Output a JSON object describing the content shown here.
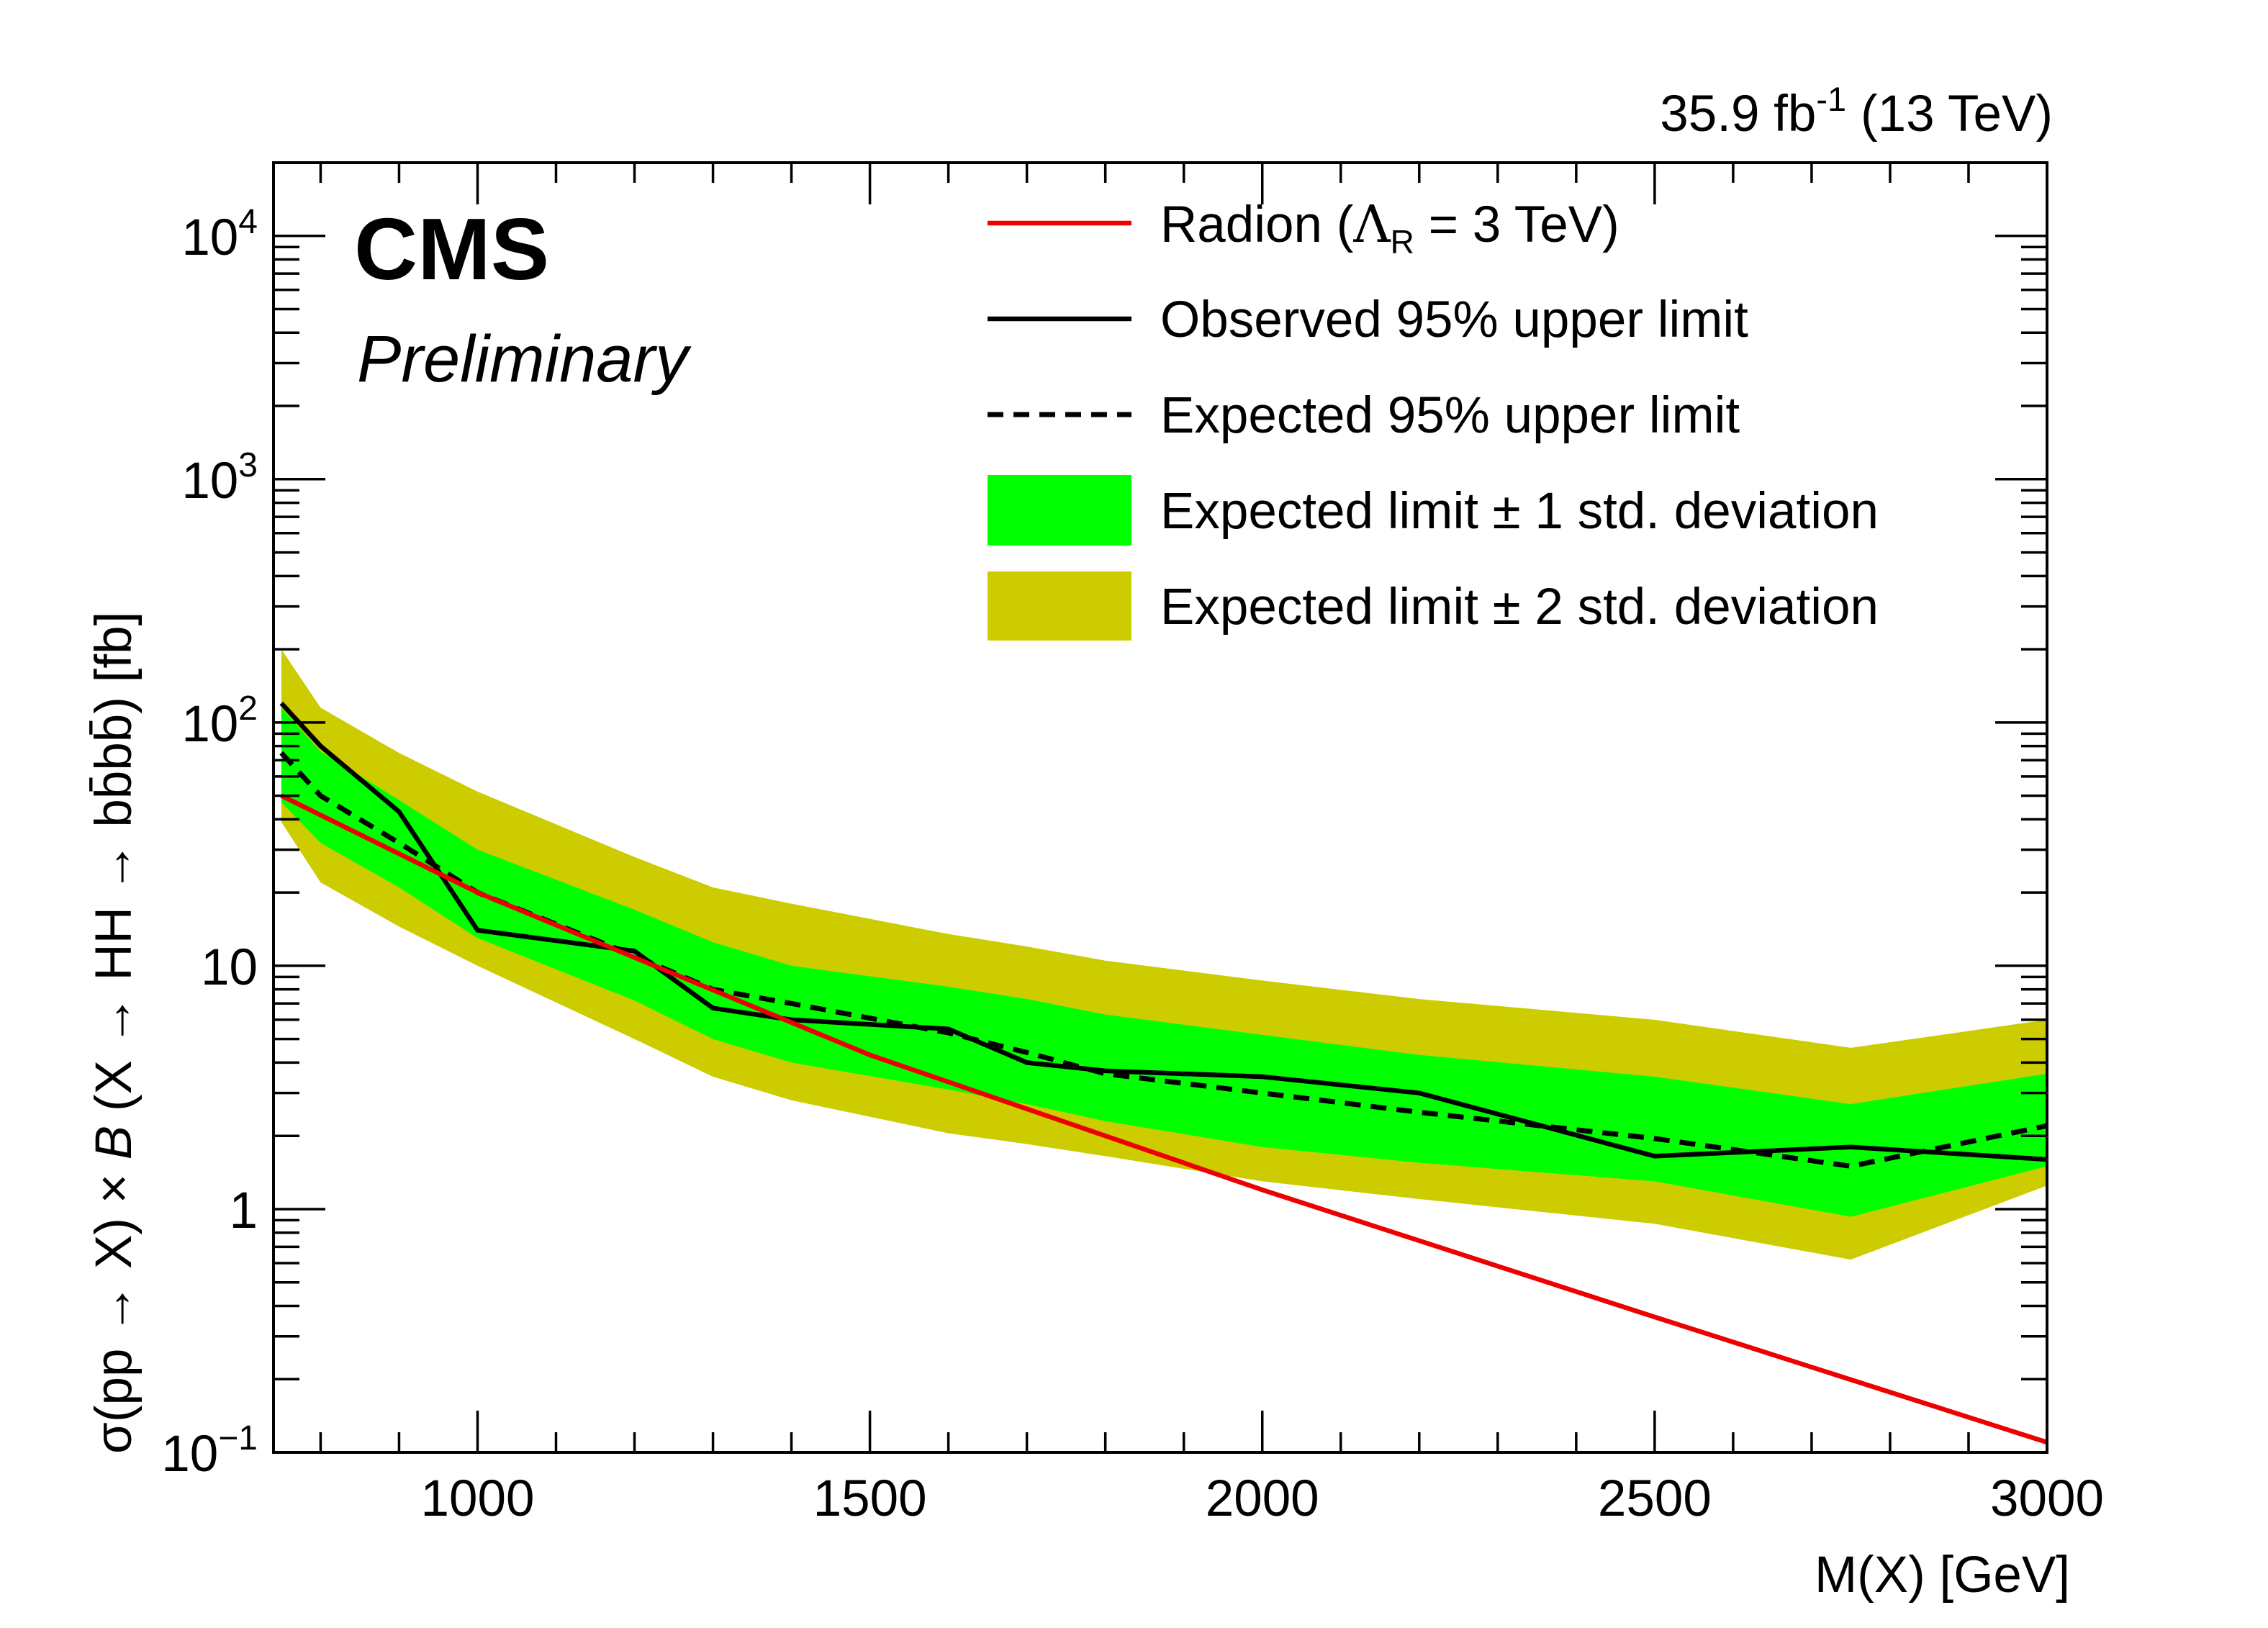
{
  "chart_data": {
    "type": "line",
    "lumi_label": "35.9 fb",
    "lumi_exp": "-1",
    "energy_label": "(13 TeV)",
    "experiment": "CMS",
    "status": "Preliminary",
    "xlabel": "M(X) [GeV]",
    "ylabel": {
      "pre": "σ(pp → X) × ",
      "italic": "B",
      "post": " (X → HH → bb̄bb̄) [fb]"
    },
    "xlim": [
      740,
      3000
    ],
    "ylim": [
      0.1,
      20000
    ],
    "yscale": "log",
    "x_ticks": [
      1000,
      1500,
      2000,
      2500,
      3000
    ],
    "x_tick_labels": [
      "1000",
      "1500",
      "2000",
      "2500",
      "3000"
    ],
    "y_ticks": [
      {
        "base": "10",
        "exp": "−1"
      },
      {
        "base": "1",
        "exp": ""
      },
      {
        "base": "10",
        "exp": ""
      },
      {
        "base": "10",
        "exp": "2"
      },
      {
        "base": "10",
        "exp": "3"
      },
      {
        "base": "10",
        "exp": "4"
      }
    ],
    "legend": {
      "radion": {
        "pre": "Radion (",
        "lambda": "Λ",
        "sub": "R",
        "post": " = 3 TeV)"
      },
      "observed": "Observed 95% upper limit",
      "expected": "Expected 95% upper limit",
      "band1": "Expected limit ± 1 std. deviation",
      "band2": "Expected limit ± 2 std. deviation"
    },
    "colors": {
      "radion": "#ee0000",
      "observed": "#000000",
      "expected": "#000000",
      "band1": "#00ff00",
      "band2": "#cccc00"
    },
    "mass_points": [
      750,
      800,
      900,
      1000,
      1200,
      1300,
      1400,
      1600,
      1700,
      1800,
      2000,
      2200,
      2500,
      2750,
      3000
    ],
    "observed": [
      120,
      80,
      43,
      14,
      11.5,
      6.7,
      6.0,
      5.5,
      4.0,
      3.7,
      3.5,
      3.0,
      1.65,
      1.8,
      1.6
    ],
    "expected": [
      75,
      50,
      32,
      20,
      11,
      8,
      7,
      5.3,
      4.4,
      3.6,
      3.0,
      2.5,
      1.95,
      1.5,
      2.2
    ],
    "band_1sigma_low": [
      47,
      32,
      21,
      13,
      7.2,
      5.0,
      4.0,
      3.1,
      2.7,
      2.3,
      1.8,
      1.55,
      1.3,
      0.93,
      1.5
    ],
    "band_1sigma_high": [
      115,
      76,
      48,
      30,
      17,
      12.5,
      10,
      8.2,
      7.3,
      6.3,
      5.2,
      4.3,
      3.5,
      2.7,
      3.6
    ],
    "band_2sigma_low": [
      39,
      22,
      14.5,
      10,
      5.0,
      3.5,
      2.8,
      2.05,
      1.85,
      1.65,
      1.3,
      1.1,
      0.87,
      0.62,
      1.25
    ],
    "band_2sigma_high": [
      200,
      115,
      75,
      52,
      28,
      21,
      18,
      13.5,
      12,
      10.5,
      8.7,
      7.3,
      6.0,
      4.6,
      6.0
    ],
    "radion_x": [
      750,
      1000,
      1500,
      2000,
      2500,
      3000
    ],
    "radion_y": [
      50,
      20,
      4.3,
      1.2,
      0.36,
      0.11
    ]
  }
}
